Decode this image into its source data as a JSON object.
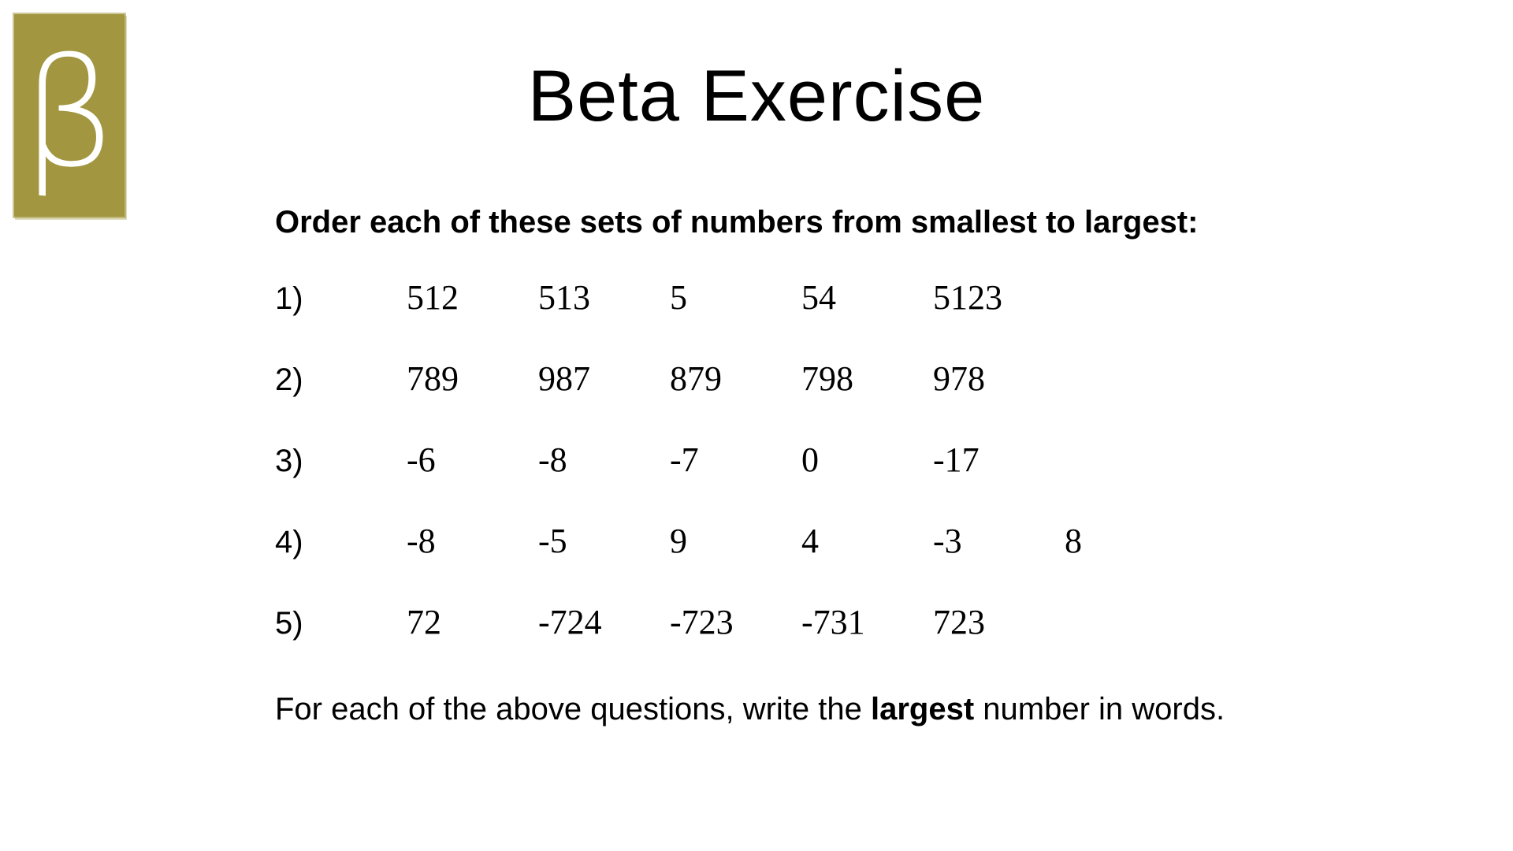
{
  "logo": {
    "glyph": "β",
    "color": "#a29740"
  },
  "title": "Beta Exercise",
  "instruction": "Order each of these sets of numbers from smallest to largest:",
  "questions": [
    {
      "label": "1)",
      "numbers": [
        "512",
        "513",
        "5",
        "54",
        "5123"
      ]
    },
    {
      "label": "2)",
      "numbers": [
        "789",
        "987",
        "879",
        "798",
        "978"
      ]
    },
    {
      "label": "3)",
      "numbers": [
        "-6",
        "-8",
        "-7",
        "0",
        "-17"
      ]
    },
    {
      "label": "4)",
      "numbers": [
        "-8",
        "-5",
        "9",
        "4",
        "-3",
        "8"
      ]
    },
    {
      "label": "5)",
      "numbers": [
        "72",
        "-724",
        "-723",
        "-731",
        "723"
      ]
    }
  ],
  "footer": {
    "before": "For each of the above questions, write the ",
    "emphasis": "largest",
    "after": " number in words."
  }
}
